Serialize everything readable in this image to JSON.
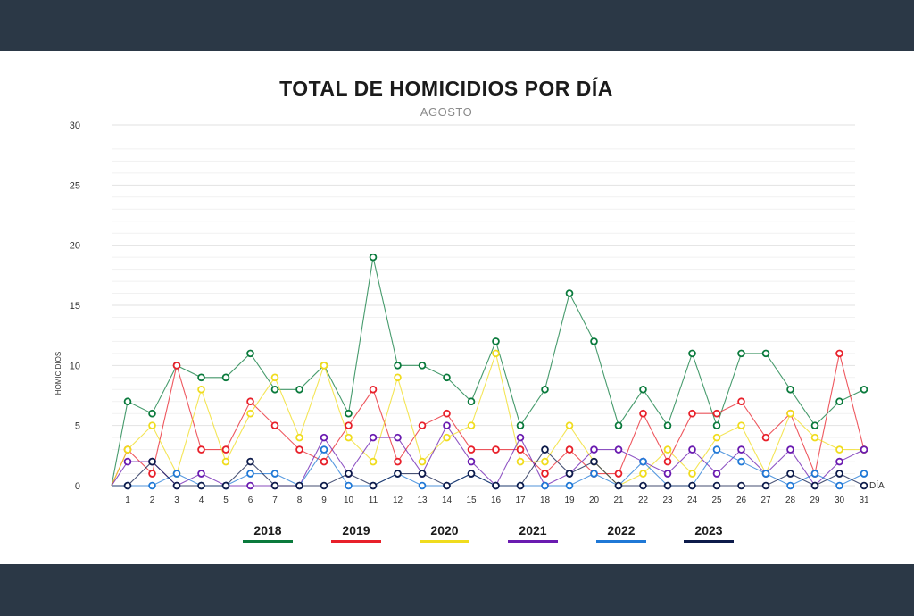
{
  "chart_data": {
    "type": "line",
    "title": "TOTAL DE HOMICIDIOS POR DÍA",
    "subtitle": "AGOSTO",
    "xlabel": "DÍA",
    "ylabel": "HOMICIDIOS",
    "ylim": [
      0,
      30
    ],
    "yticks": [
      0,
      5,
      10,
      15,
      20,
      25,
      30
    ],
    "x": [
      1,
      2,
      3,
      4,
      5,
      6,
      7,
      8,
      9,
      10,
      11,
      12,
      13,
      14,
      15,
      16,
      17,
      18,
      19,
      20,
      21,
      22,
      23,
      24,
      25,
      26,
      27,
      28,
      29,
      30,
      31
    ],
    "series": [
      {
        "name": "2018",
        "color": "#0a7a3c",
        "values": [
          7,
          6,
          10,
          9,
          9,
          11,
          8,
          8,
          10,
          6,
          19,
          10,
          10,
          9,
          7,
          12,
          5,
          8,
          16,
          12,
          5,
          8,
          5,
          11,
          5,
          11,
          11,
          8,
          5,
          7,
          8
        ]
      },
      {
        "name": "2019",
        "color": "#e8202a",
        "values": [
          3,
          1,
          10,
          3,
          3,
          7,
          5,
          3,
          2,
          5,
          8,
          2,
          5,
          6,
          3,
          3,
          3,
          1,
          3,
          1,
          1,
          6,
          2,
          6,
          6,
          7,
          4,
          6,
          1,
          11,
          3
        ]
      },
      {
        "name": "2020",
        "color": "#f0dc1e",
        "values": [
          3,
          5,
          1,
          8,
          2,
          6,
          9,
          4,
          10,
          4,
          2,
          9,
          2,
          4,
          5,
          11,
          2,
          2,
          5,
          2,
          0,
          1,
          3,
          1,
          4,
          5,
          1,
          6,
          4,
          3,
          3
        ]
      },
      {
        "name": "2021",
        "color": "#6a1bb0",
        "values": [
          2,
          2,
          0,
          1,
          0,
          0,
          0,
          0,
          4,
          1,
          4,
          4,
          1,
          5,
          2,
          0,
          4,
          0,
          1,
          3,
          3,
          2,
          1,
          3,
          1,
          3,
          1,
          3,
          0,
          2,
          3
        ]
      },
      {
        "name": "2022",
        "color": "#1f78d6",
        "values": [
          0,
          0,
          1,
          0,
          0,
          1,
          1,
          0,
          3,
          0,
          0,
          1,
          0,
          0,
          1,
          0,
          0,
          0,
          0,
          1,
          0,
          2,
          0,
          0,
          3,
          2,
          1,
          0,
          1,
          0,
          1
        ]
      },
      {
        "name": "2023",
        "color": "#0d1b4a",
        "values": [
          0,
          2,
          0,
          0,
          0,
          2,
          0,
          0,
          0,
          1,
          0,
          1,
          1,
          0,
          1,
          0,
          0,
          3,
          1,
          2,
          0,
          0,
          0,
          0,
          0,
          0,
          0,
          1,
          0,
          1,
          0
        ]
      }
    ],
    "legend_position": "bottom"
  }
}
